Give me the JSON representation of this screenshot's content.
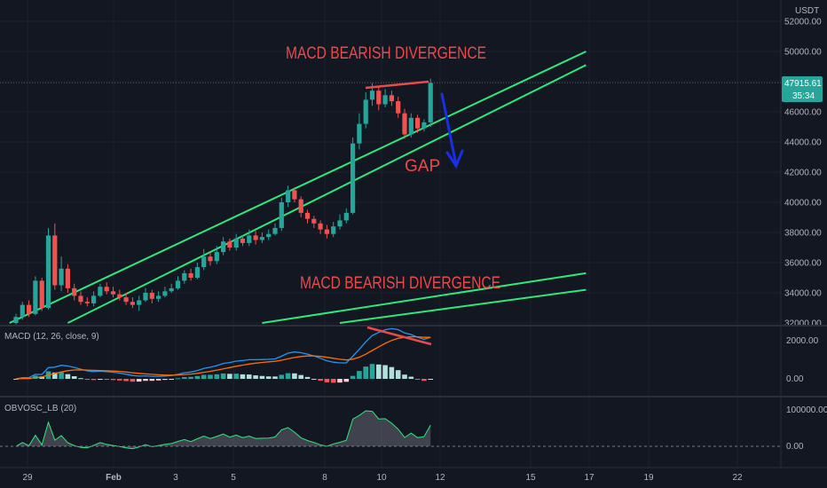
{
  "currency": "USDT",
  "price_tag": {
    "value": "47915.61",
    "countdown": "35:34",
    "color": "#26a69a"
  },
  "colors": {
    "bg": "#131722",
    "up": "#26a69a",
    "down": "#ef5350",
    "trendline": "#2ee87a",
    "annotation": "#e84b4b",
    "arrow": "#1a2ee8",
    "macd": "#2196f3",
    "signal": "#ff6d00"
  },
  "annotations": {
    "top_divergence": "MACD BEARISH DIVERGENCE",
    "gap": "GAP",
    "lower_divergence": "MACD BEARISH DIVERGENCE"
  },
  "indicators": {
    "macd": {
      "label": "MACD (12, 26, close, 9)",
      "ticks": [
        "2000.00",
        "0.00"
      ]
    },
    "obv": {
      "label": "OBVOSC_LB (20)",
      "ticks": [
        "100000.00",
        "0.00"
      ]
    }
  },
  "chart_data": {
    "type": "candlestick",
    "y_ticks": [
      "52000.00",
      "50000.00",
      "48000.00",
      "46000.00",
      "44000.00",
      "42000.00",
      "40000.00",
      "38000.00",
      "36000.00",
      "34000.00",
      "32000.00"
    ],
    "ylim": [
      32000,
      52800
    ],
    "x_ticks": [
      "29",
      "Feb",
      "3",
      "5",
      "8",
      "10",
      "12",
      "15",
      "17",
      "19",
      "22"
    ],
    "last_price": 47915.61,
    "candles": [
      [
        32000,
        32400,
        31900,
        32600
      ],
      [
        32400,
        33200,
        32200,
        33400
      ],
      [
        33200,
        32600,
        32400,
        33500
      ],
      [
        32600,
        34800,
        32500,
        35100
      ],
      [
        34800,
        33000,
        32800,
        35000
      ],
      [
        33000,
        37800,
        32900,
        38300
      ],
      [
        37800,
        34500,
        34200,
        38600
      ],
      [
        34500,
        35600,
        34100,
        36400
      ],
      [
        35600,
        34300,
        34000,
        35900
      ],
      [
        34300,
        33800,
        33500,
        34600
      ],
      [
        33800,
        33400,
        33200,
        34100
      ],
      [
        33400,
        33300,
        33100,
        33700
      ],
      [
        33300,
        33800,
        33100,
        34100
      ],
      [
        33800,
        34400,
        33700,
        34600
      ],
      [
        34400,
        34100,
        33900,
        34700
      ],
      [
        34100,
        33900,
        33700,
        34400
      ],
      [
        33900,
        33700,
        33500,
        34200
      ],
      [
        33700,
        33400,
        33200,
        34000
      ],
      [
        33400,
        33200,
        33000,
        33700
      ],
      [
        33200,
        33500,
        32800,
        33800
      ],
      [
        33500,
        34000,
        33400,
        34300
      ],
      [
        34000,
        33600,
        33300,
        34200
      ],
      [
        33600,
        33800,
        33400,
        34100
      ],
      [
        33800,
        34100,
        33700,
        34400
      ],
      [
        34100,
        34300,
        34000,
        34600
      ],
      [
        34300,
        34800,
        34200,
        35100
      ],
      [
        34800,
        35300,
        34600,
        35500
      ],
      [
        35300,
        35000,
        34800,
        35600
      ],
      [
        35000,
        35700,
        34900,
        36000
      ],
      [
        35700,
        36400,
        35500,
        36900
      ],
      [
        36400,
        36100,
        35800,
        36700
      ],
      [
        36100,
        36700,
        35900,
        37100
      ],
      [
        36700,
        37400,
        36500,
        37700
      ],
      [
        37400,
        37000,
        36800,
        37600
      ],
      [
        37000,
        37600,
        36800,
        37900
      ],
      [
        37600,
        37300,
        37100,
        37800
      ],
      [
        37300,
        37800,
        37100,
        38200
      ],
      [
        37800,
        37500,
        37200,
        38100
      ],
      [
        37500,
        37700,
        37300,
        38000
      ],
      [
        37700,
        37900,
        37500,
        38200
      ],
      [
        37900,
        38300,
        37800,
        38600
      ],
      [
        38300,
        40000,
        38100,
        40300
      ],
      [
        40000,
        40800,
        39700,
        41100
      ],
      [
        40800,
        40200,
        40000,
        41000
      ],
      [
        40200,
        39300,
        39000,
        40400
      ],
      [
        39300,
        38900,
        38600,
        39500
      ],
      [
        38900,
        38600,
        38300,
        39100
      ],
      [
        38600,
        38200,
        37900,
        38800
      ],
      [
        38200,
        37900,
        37600,
        38500
      ],
      [
        37900,
        38400,
        37700,
        38700
      ],
      [
        38400,
        38800,
        38200,
        39200
      ],
      [
        38800,
        39300,
        38600,
        39600
      ],
      [
        39300,
        43900,
        39200,
        44300
      ],
      [
        43900,
        45200,
        43500,
        45900
      ],
      [
        45200,
        46800,
        44900,
        47300
      ],
      [
        46800,
        47400,
        46400,
        47900
      ],
      [
        47400,
        46500,
        46100,
        47700
      ],
      [
        46500,
        47100,
        46300,
        47500
      ],
      [
        47100,
        46700,
        46400,
        47400
      ],
      [
        46700,
        45900,
        45600,
        47000
      ],
      [
        45900,
        44500,
        44200,
        46200
      ],
      [
        44500,
        45600,
        44300,
        45900
      ],
      [
        45600,
        44900,
        44600,
        45800
      ],
      [
        44900,
        45300,
        44700,
        45500
      ],
      [
        45300,
        47916,
        45000,
        48200
      ]
    ],
    "trendlines": [
      {
        "name": "upper_channel_a",
        "points": [
          [
            -1,
            32000
          ],
          [
            88,
            50000
          ]
        ]
      },
      {
        "name": "upper_channel_b",
        "points": [
          [
            8,
            32000
          ],
          [
            88,
            49100
          ]
        ]
      },
      {
        "name": "lower_channel_a",
        "points": [
          [
            38,
            32000
          ],
          [
            88,
            35300
          ]
        ]
      },
      {
        "name": "lower_channel_b",
        "points": [
          [
            50,
            32000
          ],
          [
            88,
            34200
          ]
        ]
      }
    ]
  }
}
